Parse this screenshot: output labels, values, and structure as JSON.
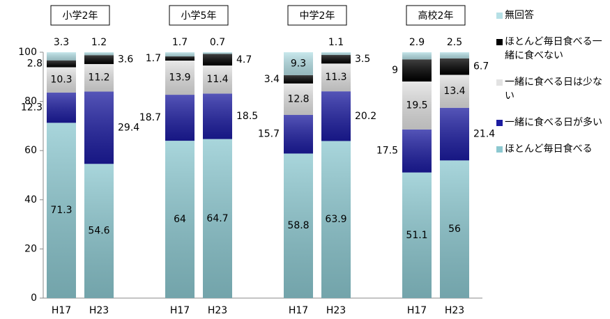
{
  "chart_data": {
    "type": "stacked_bar",
    "groups": [
      "小学2年",
      "小学5年",
      "中学2年",
      "高校2年"
    ],
    "categories": [
      "H17",
      "H23",
      "H17",
      "H23",
      "H17",
      "H23",
      "H17",
      "H23"
    ],
    "series": [
      {
        "name": "ほとんど毎日食べる",
        "color": "#8cc8d0",
        "values": [
          71.3,
          54.6,
          64,
          64.7,
          58.8,
          63.9,
          51.1,
          56
        ]
      },
      {
        "name": "一緒に食べる日が多い",
        "color": "#1c1ca0",
        "values": [
          12.3,
          29.4,
          18.7,
          18.5,
          15.7,
          20.2,
          17.5,
          21.4
        ]
      },
      {
        "name": "一緒に食べる日は少ない",
        "color": "#e2e2e2",
        "values": [
          10.3,
          11.2,
          13.9,
          11.4,
          12.8,
          11.3,
          19.5,
          13.4
        ]
      },
      {
        "name": "ほとんど毎日食べる一緒に食べない",
        "color": "#000000",
        "values": [
          2.8,
          3.6,
          1.7,
          4.7,
          3.4,
          3.5,
          9,
          6.7
        ]
      },
      {
        "name": "無回答",
        "color": "#b6e0e6",
        "values": [
          3.3,
          1.2,
          1.7,
          0.7,
          9.3,
          1.1,
          2.9,
          2.5
        ]
      }
    ],
    "ylim": [
      0,
      100
    ],
    "yticks": [
      0,
      20,
      40,
      60,
      80,
      100
    ],
    "grid": false
  }
}
